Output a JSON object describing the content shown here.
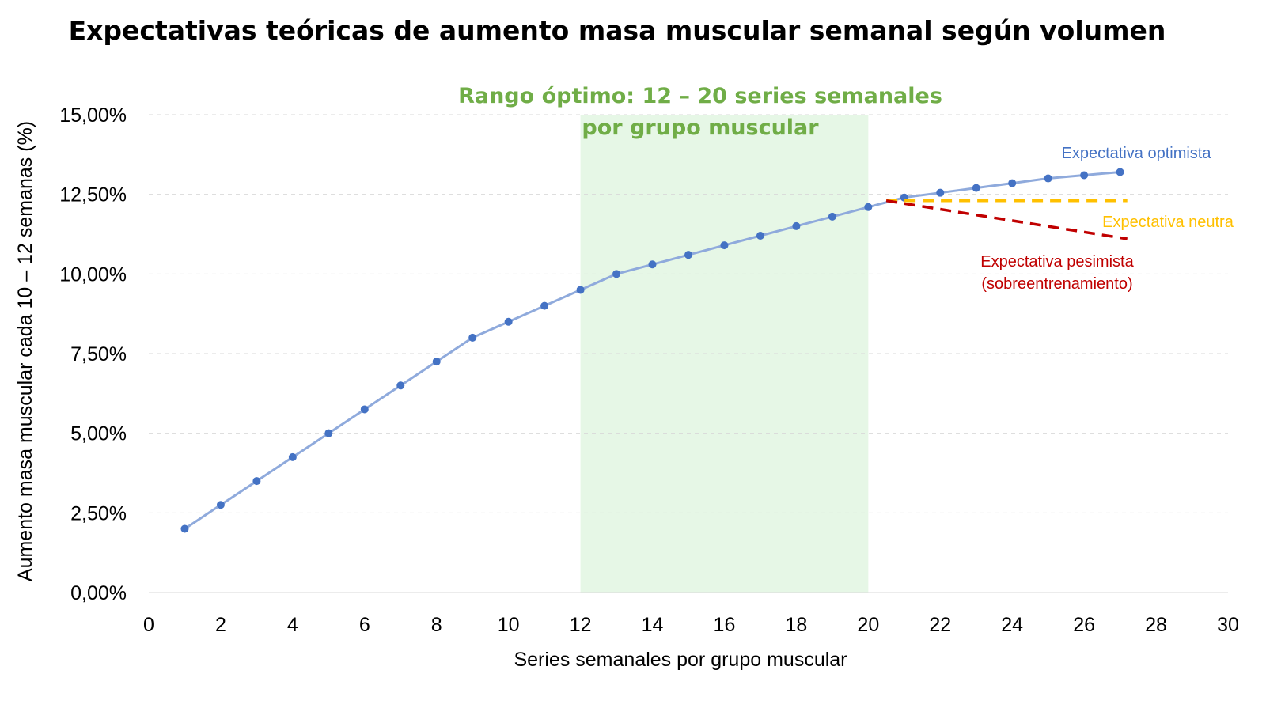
{
  "chart_data": {
    "type": "line",
    "title": "Expectativas teóricas de aumento masa muscular semanal según volumen",
    "xlabel": "Series semanales por grupo muscular",
    "ylabel": "Aumento masa muscular cada 10 – 12 semanas (%)",
    "xlim": [
      0,
      30
    ],
    "ylim": [
      0,
      0.15
    ],
    "x_ticks": [
      "0",
      "2",
      "4",
      "6",
      "8",
      "10",
      "12",
      "14",
      "16",
      "18",
      "20",
      "22",
      "24",
      "26",
      "28",
      "30"
    ],
    "y_ticks": [
      "0,00%",
      "2,50%",
      "5,00%",
      "7,50%",
      "10,00%",
      "12,50%",
      "15,00%"
    ],
    "grid": true,
    "highlight_band": {
      "x_range": [
        12,
        20
      ],
      "label_lines": [
        "Rango óptimo: 12 – 20 series semanales",
        "por grupo muscular"
      ],
      "color": "#e6f7e6",
      "label_color": "#70ad47"
    },
    "series": [
      {
        "name": "Expectativa optimista",
        "color": "#4472c4",
        "line_color": "#8faadc",
        "style": "solid-markers",
        "points": [
          [
            1,
            0.02
          ],
          [
            2,
            0.0275
          ],
          [
            3,
            0.035
          ],
          [
            4,
            0.0425
          ],
          [
            5,
            0.05
          ],
          [
            6,
            0.0575
          ],
          [
            7,
            0.065
          ],
          [
            8,
            0.0725
          ],
          [
            9,
            0.08
          ],
          [
            10,
            0.085
          ],
          [
            11,
            0.09
          ],
          [
            12,
            0.095
          ],
          [
            13,
            0.1
          ],
          [
            14,
            0.103
          ],
          [
            15,
            0.106
          ],
          [
            16,
            0.109
          ],
          [
            17,
            0.112
          ],
          [
            18,
            0.115
          ],
          [
            19,
            0.118
          ],
          [
            20,
            0.121
          ],
          [
            21,
            0.124
          ],
          [
            22,
            0.1255
          ],
          [
            23,
            0.127
          ],
          [
            24,
            0.1285
          ],
          [
            25,
            0.13
          ],
          [
            26,
            0.131
          ],
          [
            27,
            0.132
          ]
        ]
      },
      {
        "name": "Expectativa neutra",
        "color": "#ffc000",
        "style": "dashed",
        "points": [
          [
            20.5,
            0.123
          ],
          [
            27.2,
            0.123
          ]
        ]
      },
      {
        "name": "Expectativa pesimista",
        "name_line2": "(sobreentrenamiento)",
        "color": "#c00000",
        "style": "dashed",
        "points": [
          [
            20.5,
            0.123
          ],
          [
            27.2,
            0.111
          ]
        ]
      }
    ]
  }
}
